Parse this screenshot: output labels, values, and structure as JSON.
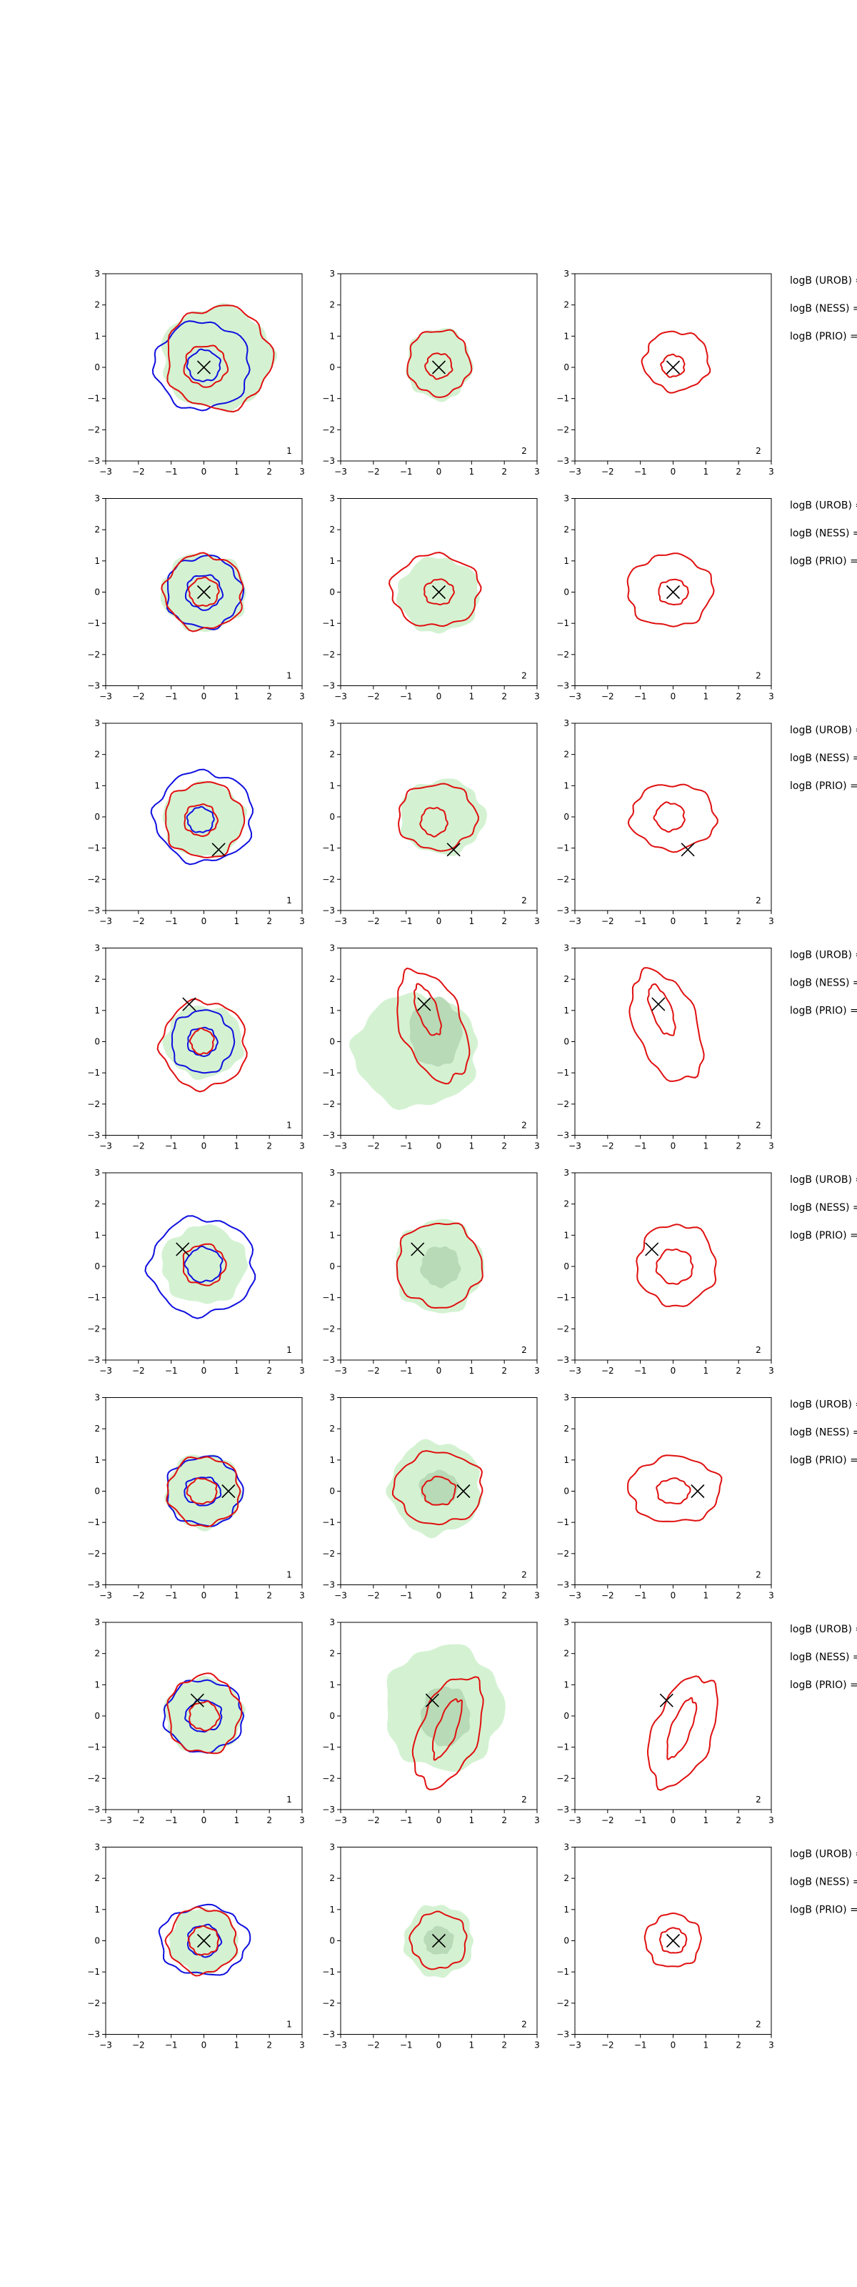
{
  "chart_data": {
    "type": "contour",
    "layout": "grid",
    "grid": {
      "rows": 8,
      "cols": 3
    },
    "xlim": [
      -3,
      3
    ],
    "ylim": [
      -3,
      3
    ],
    "xticks": [
      -3,
      -2,
      -1,
      0,
      1,
      2,
      3
    ],
    "yticks": [
      -3,
      -2,
      -1,
      0,
      1,
      2,
      3
    ],
    "grid_lines": false,
    "colors": {
      "fill_outer": "#d4f2d2",
      "fill_inner": "#b8dab6",
      "red": "#e01010",
      "blue": "#1010e0",
      "marker": "#000000"
    },
    "column_labels": [
      "1",
      "2",
      "2"
    ],
    "row_annotations": [
      "logB (UROB) =",
      "logB (NESS) =",
      "logB (PRIO) ="
    ],
    "rows": [
      {
        "marker": [
          0.0,
          0.0
        ],
        "panels": [
          {
            "fill": {
              "cx": 0.4,
              "cy": 0.3,
              "rx": 1.7,
              "ry": 1.65
            },
            "fill_inner": null,
            "red": [
              {
                "cx": 0.45,
                "cy": 0.3,
                "rx": 1.6,
                "ry": 1.65
              },
              {
                "cx": 0.05,
                "cy": 0.05,
                "rx": 0.65,
                "ry": 0.65
              }
            ],
            "blue": [
              {
                "cx": -0.05,
                "cy": 0.05,
                "rx": 1.45,
                "ry": 1.4
              },
              {
                "cx": 0.0,
                "cy": 0.05,
                "rx": 0.5,
                "ry": 0.5
              }
            ]
          },
          {
            "fill": {
              "cx": 0.0,
              "cy": 0.1,
              "rx": 1.0,
              "ry": 1.15
            },
            "fill_inner": null,
            "red": [
              {
                "cx": 0.0,
                "cy": 0.15,
                "rx": 0.95,
                "ry": 1.05
              },
              {
                "cx": 0.0,
                "cy": 0.05,
                "rx": 0.4,
                "ry": 0.4
              }
            ],
            "blue": []
          },
          {
            "fill": null,
            "fill_inner": null,
            "red": [
              {
                "cx": 0.1,
                "cy": 0.2,
                "rx": 1.0,
                "ry": 0.95
              },
              {
                "cx": 0.0,
                "cy": 0.05,
                "rx": 0.35,
                "ry": 0.35
              }
            ],
            "blue": []
          }
        ]
      },
      {
        "marker": [
          0.0,
          0.0
        ],
        "panels": [
          {
            "fill": {
              "cx": 0.0,
              "cy": 0.0,
              "rx": 1.3,
              "ry": 1.25
            },
            "fill_inner": null,
            "red": [
              {
                "cx": 0.0,
                "cy": 0.0,
                "rx": 1.2,
                "ry": 1.2
              },
              {
                "cx": 0.0,
                "cy": 0.0,
                "rx": 0.45,
                "ry": 0.45
              }
            ],
            "blue": [
              {
                "cx": 0.0,
                "cy": 0.0,
                "rx": 1.15,
                "ry": 1.15
              },
              {
                "cx": 0.0,
                "cy": 0.0,
                "rx": 0.55,
                "ry": 0.55
              }
            ]
          },
          {
            "fill": {
              "cx": 0.0,
              "cy": -0.1,
              "rx": 1.25,
              "ry": 1.2
            },
            "fill_inner": null,
            "red": [
              {
                "cx": -0.1,
                "cy": 0.05,
                "rx": 1.35,
                "ry": 1.15
              },
              {
                "cx": 0.0,
                "cy": 0.0,
                "rx": 0.45,
                "ry": 0.4
              }
            ],
            "blue": []
          },
          {
            "fill": null,
            "fill_inner": null,
            "red": [
              {
                "cx": -0.1,
                "cy": 0.05,
                "rx": 1.3,
                "ry": 1.15
              },
              {
                "cx": 0.0,
                "cy": 0.0,
                "rx": 0.45,
                "ry": 0.4
              }
            ],
            "blue": []
          }
        ]
      },
      {
        "marker": [
          0.45,
          -1.05
        ],
        "panels": [
          {
            "fill": {
              "cx": 0.0,
              "cy": -0.1,
              "rx": 1.25,
              "ry": 1.2
            },
            "fill_inner": null,
            "red": [
              {
                "cx": 0.0,
                "cy": -0.1,
                "rx": 1.2,
                "ry": 1.2
              },
              {
                "cx": -0.1,
                "cy": -0.1,
                "rx": 0.5,
                "ry": 0.5
              }
            ],
            "blue": [
              {
                "cx": 0.0,
                "cy": 0.0,
                "rx": 1.5,
                "ry": 1.45
              },
              {
                "cx": -0.1,
                "cy": -0.1,
                "rx": 0.4,
                "ry": 0.4
              }
            ]
          },
          {
            "fill": {
              "cx": 0.1,
              "cy": 0.0,
              "rx": 1.3,
              "ry": 1.2
            },
            "fill_inner": null,
            "red": [
              {
                "cx": -0.05,
                "cy": 0.0,
                "rx": 1.2,
                "ry": 1.05
              },
              {
                "cx": -0.15,
                "cy": -0.15,
                "rx": 0.4,
                "ry": 0.45
              }
            ],
            "blue": []
          },
          {
            "fill": null,
            "fill_inner": null,
            "red": [
              {
                "cx": 0.0,
                "cy": 0.0,
                "rx": 1.3,
                "ry": 1.05
              },
              {
                "cx": -0.1,
                "cy": 0.0,
                "rx": 0.45,
                "ry": 0.45
              }
            ],
            "blue": []
          }
        ]
      },
      {
        "marker": [
          -0.45,
          1.2
        ],
        "panels": [
          {
            "fill": {
              "cx": 0.0,
              "cy": 0.0,
              "rx": 1.2,
              "ry": 1.15
            },
            "fill_inner": null,
            "red": [
              {
                "cx": 0.0,
                "cy": -0.1,
                "rx": 1.3,
                "ry": 1.4
              },
              {
                "cx": -0.05,
                "cy": 0.0,
                "rx": 0.35,
                "ry": 0.4
              }
            ],
            "blue": [
              {
                "cx": -0.05,
                "cy": 0.0,
                "rx": 0.95,
                "ry": 1.0
              },
              {
                "cx": -0.05,
                "cy": 0.0,
                "rx": 0.45,
                "ry": 0.45
              }
            ]
          },
          {
            "fill": {
              "cx": -0.7,
              "cy": -0.3,
              "rx": 1.9,
              "ry": 1.8
            },
            "fill_inner": {
              "cx": -0.1,
              "cy": 0.3,
              "rx": 0.8,
              "ry": 1.1
            },
            "red": [
              {
                "cx": -0.2,
                "cy": 0.5,
                "rx": 0.95,
                "ry": 1.85,
                "rot": 20
              },
              {
                "cx": -0.35,
                "cy": 1.0,
                "rx": 0.3,
                "ry": 0.85,
                "rot": 20
              }
            ],
            "blue": []
          },
          {
            "fill": null,
            "fill_inner": null,
            "red": [
              {
                "cx": -0.2,
                "cy": 0.5,
                "rx": 0.95,
                "ry": 1.85,
                "rot": 20
              },
              {
                "cx": -0.35,
                "cy": 1.0,
                "rx": 0.3,
                "ry": 0.85,
                "rot": 20
              }
            ],
            "blue": []
          }
        ]
      },
      {
        "marker": [
          -0.65,
          0.55
        ],
        "panels": [
          {
            "fill": {
              "cx": 0.0,
              "cy": 0.05,
              "rx": 1.3,
              "ry": 1.25
            },
            "fill_inner": null,
            "red": [
              {
                "cx": 0.0,
                "cy": 0.05,
                "rx": 0.65,
                "ry": 0.65
              }
            ],
            "blue": [
              {
                "cx": -0.05,
                "cy": 0.0,
                "rx": 1.6,
                "ry": 1.55
              },
              {
                "cx": 0.0,
                "cy": 0.05,
                "rx": 0.55,
                "ry": 0.55
              }
            ]
          },
          {
            "fill": {
              "cx": 0.0,
              "cy": 0.0,
              "rx": 1.35,
              "ry": 1.5
            },
            "fill_inner": {
              "cx": 0.05,
              "cy": 0.0,
              "rx": 0.6,
              "ry": 0.65
            },
            "red": [
              {
                "cx": 0.0,
                "cy": 0.05,
                "rx": 1.3,
                "ry": 1.35
              }
            ],
            "blue": []
          },
          {
            "fill": null,
            "fill_inner": null,
            "red": [
              {
                "cx": 0.1,
                "cy": 0.05,
                "rx": 1.2,
                "ry": 1.3
              },
              {
                "cx": 0.05,
                "cy": 0.0,
                "rx": 0.55,
                "ry": 0.55
              }
            ],
            "blue": []
          }
        ]
      },
      {
        "marker": [
          0.75,
          0.0
        ],
        "panels": [
          {
            "fill": {
              "cx": 0.0,
              "cy": 0.0,
              "rx": 1.15,
              "ry": 1.2
            },
            "fill_inner": null,
            "red": [
              {
                "cx": 0.0,
                "cy": 0.0,
                "rx": 1.1,
                "ry": 1.1
              },
              {
                "cx": -0.05,
                "cy": 0.0,
                "rx": 0.45,
                "ry": 0.4
              }
            ],
            "blue": [
              {
                "cx": 0.0,
                "cy": 0.0,
                "rx": 1.15,
                "ry": 1.1
              },
              {
                "cx": -0.05,
                "cy": 0.0,
                "rx": 0.55,
                "ry": 0.45
              }
            ]
          },
          {
            "fill": {
              "cx": -0.1,
              "cy": 0.1,
              "rx": 1.4,
              "ry": 1.5
            },
            "fill_inner": {
              "cx": 0.0,
              "cy": 0.1,
              "rx": 0.6,
              "ry": 0.55
            },
            "red": [
              {
                "cx": 0.0,
                "cy": 0.1,
                "rx": 1.35,
                "ry": 1.15
              },
              {
                "cx": 0.0,
                "cy": 0.0,
                "rx": 0.5,
                "ry": 0.45
              }
            ],
            "blue": []
          },
          {
            "fill": null,
            "fill_inner": null,
            "red": [
              {
                "cx": 0.05,
                "cy": 0.05,
                "rx": 1.4,
                "ry": 1.05
              },
              {
                "cx": 0.0,
                "cy": 0.0,
                "rx": 0.5,
                "ry": 0.4
              }
            ],
            "blue": []
          }
        ]
      },
      {
        "marker": [
          -0.2,
          0.5
        ],
        "panels": [
          {
            "fill": {
              "cx": 0.0,
              "cy": 0.0,
              "rx": 1.2,
              "ry": 1.2
            },
            "fill_inner": null,
            "red": [
              {
                "cx": 0.0,
                "cy": 0.05,
                "rx": 1.1,
                "ry": 1.25
              },
              {
                "cx": 0.0,
                "cy": 0.0,
                "rx": 0.45,
                "ry": 0.45
              }
            ],
            "blue": [
              {
                "cx": 0.0,
                "cy": 0.0,
                "rx": 1.2,
                "ry": 1.15
              },
              {
                "cx": 0.0,
                "cy": 0.0,
                "rx": 0.55,
                "ry": 0.5
              }
            ]
          },
          {
            "fill": {
              "cx": 0.15,
              "cy": 0.25,
              "rx": 1.8,
              "ry": 2.0
            },
            "fill_inner": {
              "cx": 0.2,
              "cy": 0.0,
              "rx": 0.75,
              "ry": 0.95
            },
            "red": [
              {
                "cx": 0.3,
                "cy": -0.5,
                "rx": 0.9,
                "ry": 1.85,
                "rot": -20
              },
              {
                "cx": 0.25,
                "cy": -0.4,
                "rx": 0.3,
                "ry": 1.0,
                "rot": -20
              }
            ],
            "blue": []
          },
          {
            "fill": null,
            "fill_inner": null,
            "red": [
              {
                "cx": 0.3,
                "cy": -0.5,
                "rx": 0.9,
                "ry": 1.85,
                "rot": -20
              },
              {
                "cx": 0.25,
                "cy": -0.4,
                "rx": 0.3,
                "ry": 1.0,
                "rot": -20
              }
            ],
            "blue": []
          }
        ]
      },
      {
        "marker": [
          0.0,
          0.0
        ],
        "panels": [
          {
            "fill": {
              "cx": 0.0,
              "cy": 0.0,
              "rx": 1.05,
              "ry": 1.05
            },
            "fill_inner": null,
            "red": [
              {
                "cx": -0.05,
                "cy": 0.0,
                "rx": 1.05,
                "ry": 1.05
              },
              {
                "cx": 0.0,
                "cy": 0.0,
                "rx": 0.45,
                "ry": 0.45
              }
            ],
            "blue": [
              {
                "cx": 0.0,
                "cy": 0.0,
                "rx": 1.35,
                "ry": 1.1
              },
              {
                "cx": 0.0,
                "cy": 0.0,
                "rx": 0.5,
                "ry": 0.5
              }
            ]
          },
          {
            "fill": {
              "cx": 0.0,
              "cy": 0.0,
              "rx": 1.05,
              "ry": 1.15
            },
            "fill_inner": {
              "cx": 0.0,
              "cy": 0.0,
              "rx": 0.45,
              "ry": 0.45
            },
            "red": [
              {
                "cx": 0.0,
                "cy": 0.0,
                "rx": 0.85,
                "ry": 0.9
              }
            ],
            "blue": []
          },
          {
            "fill": null,
            "fill_inner": null,
            "red": [
              {
                "cx": 0.0,
                "cy": 0.0,
                "rx": 0.85,
                "ry": 0.85
              },
              {
                "cx": 0.0,
                "cy": 0.0,
                "rx": 0.4,
                "ry": 0.4
              }
            ],
            "blue": []
          }
        ]
      }
    ]
  }
}
